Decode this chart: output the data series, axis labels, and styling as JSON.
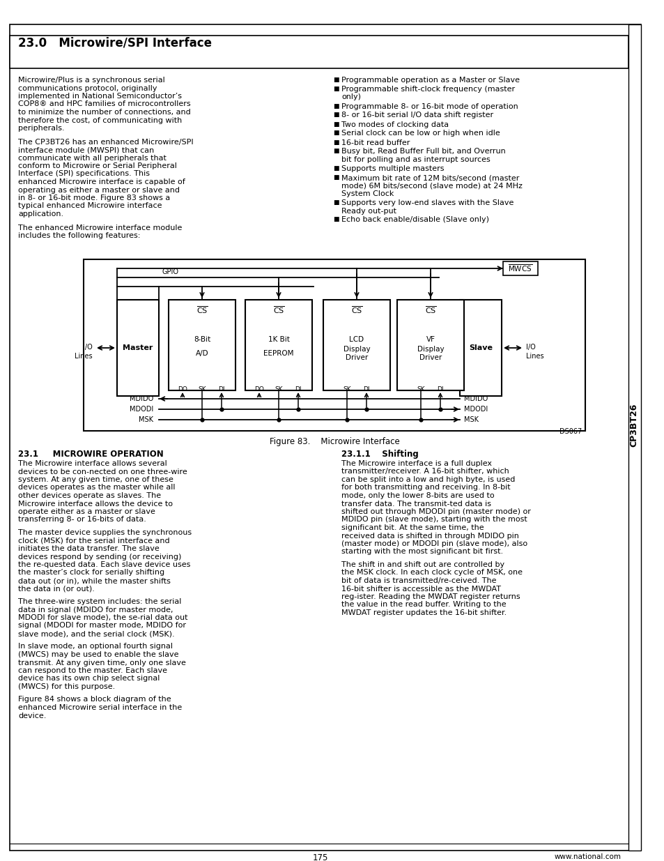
{
  "page_bg": "#ffffff",
  "title": "23.0   Microwire/SPI Interface",
  "sidebar_text": "CP3BT26",
  "left_col_para1": "Microwire/Plus is a synchronous serial communications protocol, originally implemented in National Semiconductor’s COP8® and HPC families of microcontrollers to minimize the number of connections, and therefore the cost, of communicating with peripherals.",
  "left_col_para2": "The CP3BT26 has an enhanced Microwire/SPI interface module (MWSPI) that can communicate with all peripherals that conform to Microwire or Serial Peripheral Interface (SPI) specifications. This enhanced Microwire interface is capable of operating as either a master or slave and in 8- or 16-bit mode. Figure 83 shows a typical enhanced Microwire interface application.",
  "left_col_para3": "The enhanced Microwire interface module includes the following features:",
  "right_col_bullets": [
    "Programmable operation as a Master or Slave",
    "Programmable shift-clock frequency (master only)",
    "Programmable 8- or 16-bit mode of operation",
    "8- or 16-bit serial I/O data shift register",
    "Two modes of clocking data",
    "Serial clock can be low or high when idle",
    "16-bit read buffer",
    "Busy bit, Read Buffer Full bit, and Overrun bit for polling and as interrupt sources",
    "Supports multiple masters",
    "Maximum bit rate of 12M bits/second (master mode) 6M bits/second (slave mode) at 24 MHz System Clock",
    "Supports very low-end slaves with the Slave Ready out-put",
    "Echo back enable/disable (Slave only)"
  ],
  "fig_caption": "Figure 83.    Microwire Interface",
  "sec21_title": "23.1     MICROWIRE OPERATION",
  "sec211_title": "23.1.1    Shifting",
  "sec21_paras": [
    "The Microwire interface allows several devices to be con-nected on one three-wire system. At any given time, one of these devices operates as the master while all other devices operate as slaves. The Microwire interface allows the device to operate either as a master or slave transferring 8- or 16-bits of data.",
    "The master device supplies the synchronous clock (MSK) for the serial interface and initiates the data transfer. The slave devices respond by sending (or receiving) the re-quested data. Each slave device uses the master’s clock for serially shifting data out (or in), while the master shifts the data in (or out).",
    "The three-wire system includes: the serial data in signal (MDIDO for master mode, MDODI for slave mode), the se-rial data out signal (MDODI for master mode, MDIDO for slave mode), and the serial clock (MSK).",
    "In slave mode, an optional fourth signal (MWCS) may be used to enable the slave transmit. At any given time, only one slave can respond to the master. Each slave device has its own chip select signal (MWCS) for this purpose.",
    "Figure 84 shows a block diagram of the enhanced Microwire serial interface in the device."
  ],
  "sec211_paras": [
    "The Microwire interface is a full duplex transmitter/receiver. A 16-bit shifter, which can be split into a low and high byte, is used for both transmitting and receiving. In 8-bit mode, only the lower 8-bits are used to transfer data. The transmit-ted data is shifted out through MDODI pin (master mode) or MDIDO pin (slave mode), starting with the most significant bit. At the same time, the received data is shifted in through MDIDO pin (master mode) or MDODI pin (slave mode), also starting with the most significant bit first.",
    "The shift in and shift out are controlled by the MSK clock. In each clock cycle of MSK, one bit of data is transmitted/re-ceived. The 16-bit shifter is accessible as the MWDAT reg-ister. Reading the MWDAT register returns the value in the read buffer. Writing to the MWDAT register updates the 16-bit shifter."
  ],
  "page_number": "175",
  "website": "www.national.com",
  "ds_ref": "DS067",
  "font_size_body": 8.0,
  "font_size_title": 12.0,
  "font_size_section": 8.5,
  "font_size_small": 7.0
}
